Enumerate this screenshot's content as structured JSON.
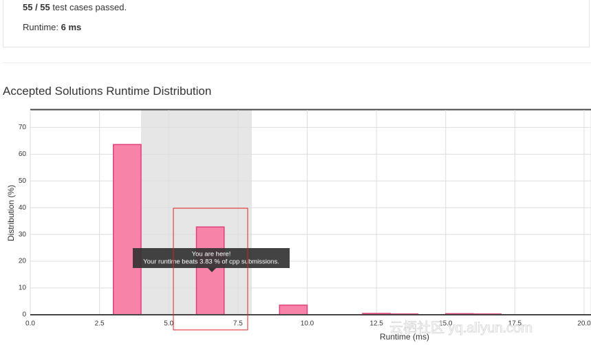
{
  "result": {
    "passed": "55 / 55",
    "passed_text": "test cases passed.",
    "runtime_label": "Runtime:",
    "runtime": "6 ms"
  },
  "chart_data": {
    "type": "histogram",
    "title": "Accepted Solutions Runtime Distribution",
    "x_label": "Runtime (ms)",
    "y_label": "Distribution (%)",
    "bins": [
      3,
      4,
      5,
      6,
      7,
      8,
      9,
      10,
      11,
      12,
      13,
      14,
      15,
      16,
      17
    ],
    "values": [
      63.6,
      0,
      0,
      32.8,
      0,
      0,
      3.6,
      0,
      0,
      0.5,
      0.3,
      0,
      0.4,
      0.3
    ],
    "color": "#f784a8",
    "highlight": [
      4,
      8
    ],
    "xlim": [
      0,
      20
    ],
    "ylim": [
      0,
      76
    ],
    "xticks": [
      {
        "value": 0,
        "label": "0.0"
      },
      2.5,
      {
        "value": 5,
        "label": "5.0"
      },
      7.5,
      {
        "value": 10,
        "label": "10.0"
      },
      12.5,
      {
        "value": 15,
        "label": "15.0"
      },
      17.5,
      {
        "value": 20,
        "label": "20.0"
      }
    ],
    "yticks": [
      0,
      10,
      20,
      30,
      40,
      50,
      60,
      70
    ],
    "grid": true,
    "tooltip": {
      "title": "You are here!",
      "text": "Your runtime beats 3.83 % of cpp submissions."
    }
  },
  "watermark": "云栖社区 yq.aliyun.com"
}
